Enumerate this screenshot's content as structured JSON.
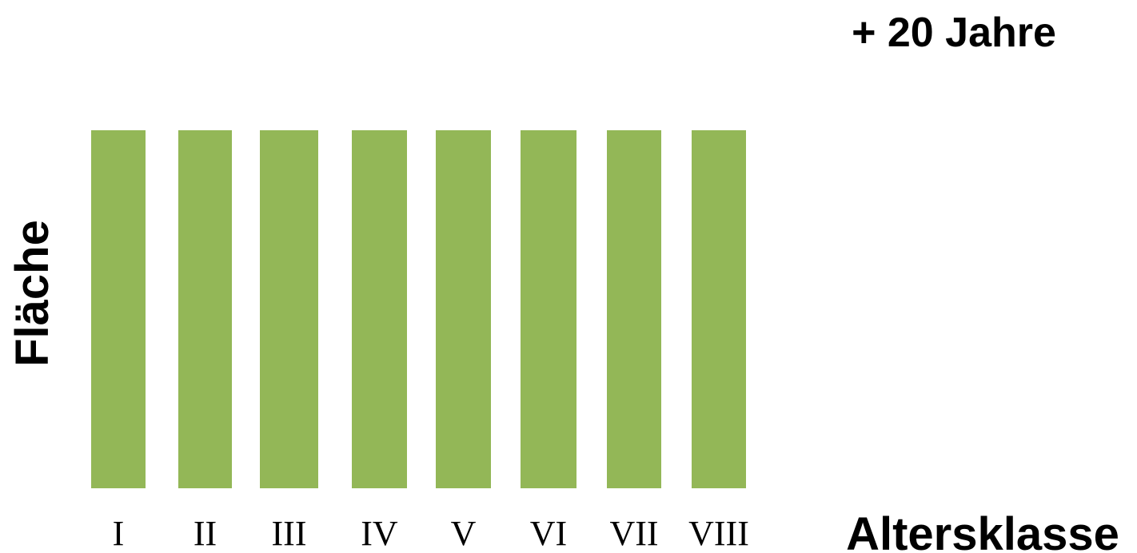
{
  "chart_data": {
    "type": "bar",
    "title": "+ 20 Jahre",
    "xlabel": "Altersklasse",
    "ylabel": "Fläche",
    "categories": [
      "I",
      "II",
      "III",
      "IV",
      "V",
      "VI",
      "VII",
      "VIII"
    ],
    "values": [
      1,
      1,
      1,
      1,
      1,
      1,
      1,
      1
    ],
    "ylim": [
      0,
      1
    ],
    "grid": false,
    "legend": "none",
    "bar_color": "#93B757"
  }
}
